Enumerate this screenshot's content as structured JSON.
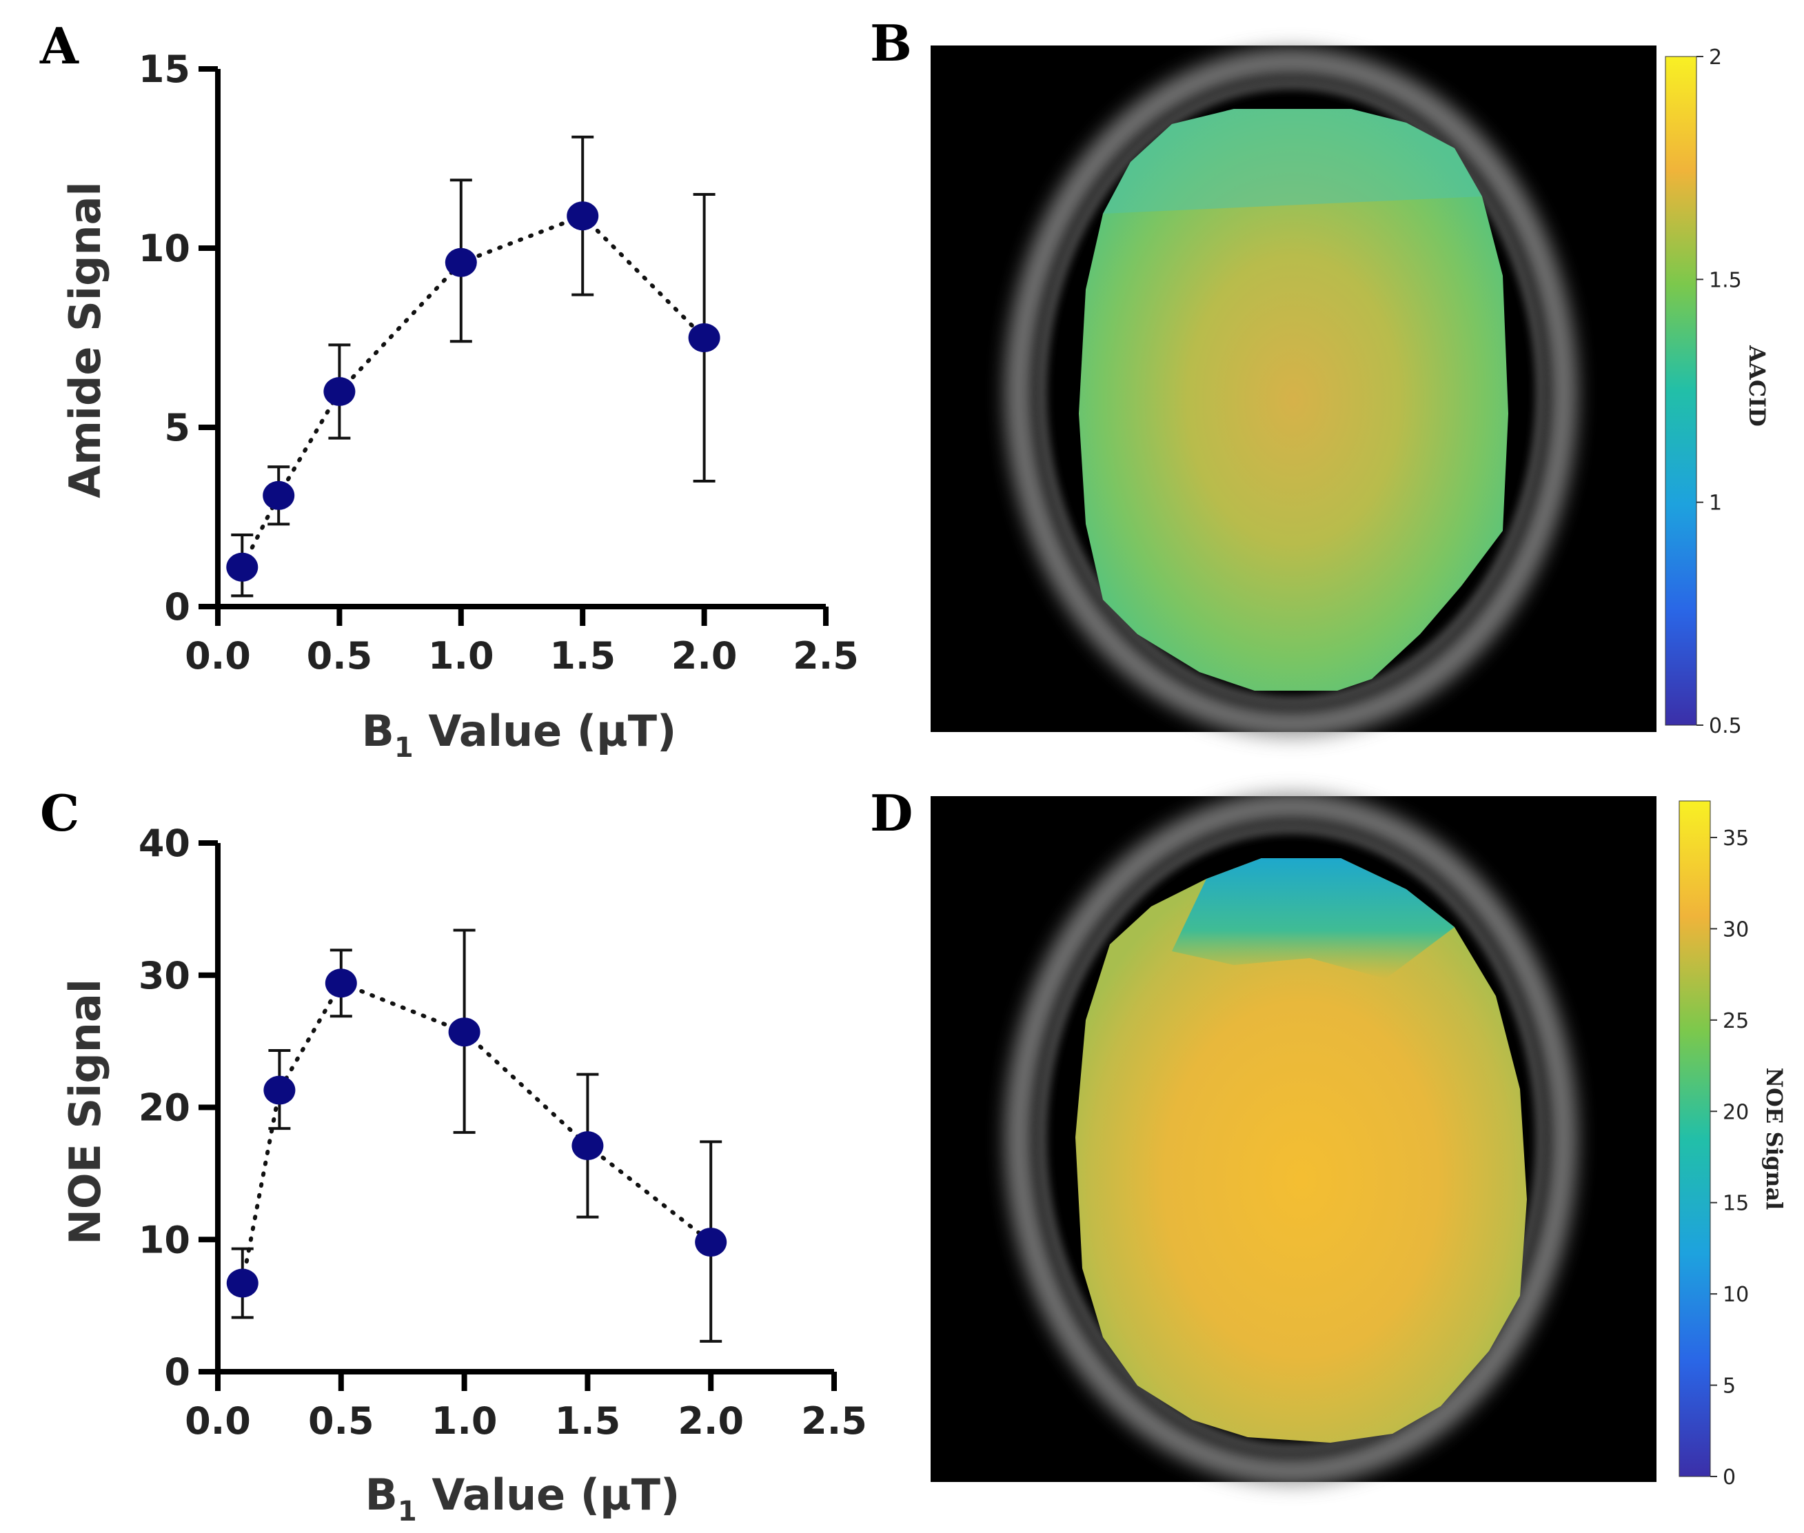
{
  "panels": [
    {
      "letter": "A"
    },
    {
      "letter": "B"
    },
    {
      "letter": "C"
    },
    {
      "letter": "D"
    }
  ],
  "colors": {
    "marker": "#0a0a80",
    "brain_bg": "#000000",
    "skull": "#8a8a8a",
    "viridis_like": [
      "#3b2fa8",
      "#1f8ee8",
      "#18bfbf",
      "#58c86e",
      "#c4c040",
      "#f2b43c",
      "#f7ee2a"
    ]
  },
  "chart_data": [
    {
      "id": "A",
      "type": "scatter",
      "connector": "dotted",
      "title": "",
      "xlabel_main": "B",
      "xlabel_sub": "1",
      "xlabel_rest": " Value (µT)",
      "ylabel": "Amide Signal",
      "xlim": [
        0,
        2.5
      ],
      "ylim": [
        0,
        15
      ],
      "xticks": [
        0.0,
        0.5,
        1.0,
        1.5,
        2.0,
        2.5
      ],
      "xtick_labels": [
        "0.0",
        "0.5",
        "1.0",
        "1.5",
        "2.0",
        "2.5"
      ],
      "yticks": [
        0,
        5,
        10,
        15
      ],
      "ytick_labels": [
        "0",
        "5",
        "10",
        "15"
      ],
      "series": [
        {
          "name": "Amide Signal",
          "x": [
            0.1,
            0.25,
            0.5,
            1.0,
            1.5,
            2.0
          ],
          "y": [
            1.1,
            3.1,
            6.0,
            9.6,
            10.9,
            7.5
          ],
          "err_low": [
            0.3,
            2.3,
            4.7,
            7.4,
            8.7,
            3.5
          ],
          "err_high": [
            2.0,
            3.9,
            7.3,
            11.9,
            13.1,
            11.5
          ]
        }
      ]
    },
    {
      "id": "C",
      "type": "scatter",
      "connector": "dotted",
      "title": "",
      "xlabel_main": "B",
      "xlabel_sub": "1",
      "xlabel_rest": " Value (µT)",
      "ylabel": "NOE Signal",
      "xlim": [
        0,
        2.5
      ],
      "ylim": [
        0,
        40
      ],
      "xticks": [
        0.0,
        0.5,
        1.0,
        1.5,
        2.0,
        2.5
      ],
      "xtick_labels": [
        "0.0",
        "0.5",
        "1.0",
        "1.5",
        "2.0",
        "2.5"
      ],
      "yticks": [
        0,
        10,
        20,
        30,
        40
      ],
      "ytick_labels": [
        "0",
        "10",
        "20",
        "30",
        "40"
      ],
      "series": [
        {
          "name": "NOE Signal",
          "x": [
            0.1,
            0.25,
            0.5,
            1.0,
            1.5,
            2.0
          ],
          "y": [
            6.7,
            21.3,
            29.4,
            25.7,
            17.1,
            9.8
          ],
          "err_low": [
            4.1,
            18.4,
            26.9,
            18.1,
            11.7,
            2.3
          ],
          "err_high": [
            9.3,
            24.3,
            31.9,
            33.4,
            22.5,
            17.4
          ]
        }
      ]
    },
    {
      "id": "B",
      "type": "heatmap",
      "title": "",
      "colorbar_label": "AACID",
      "colorbar_range": [
        0.5,
        2
      ],
      "colorbar_ticks": [
        0.5,
        1,
        1.5,
        2
      ],
      "colorbar_tick_labels": [
        "0.5",
        "1",
        "1.5",
        "2"
      ],
      "dominant_value": 1.55
    },
    {
      "id": "D",
      "type": "heatmap",
      "title": "",
      "colorbar_label": "NOE Signal",
      "colorbar_range": [
        0,
        37
      ],
      "colorbar_ticks": [
        0,
        5,
        10,
        15,
        20,
        25,
        30,
        35
      ],
      "colorbar_tick_labels": [
        "0",
        "5",
        "10",
        "15",
        "20",
        "25",
        "30",
        "35"
      ],
      "dominant_value": 30
    }
  ]
}
